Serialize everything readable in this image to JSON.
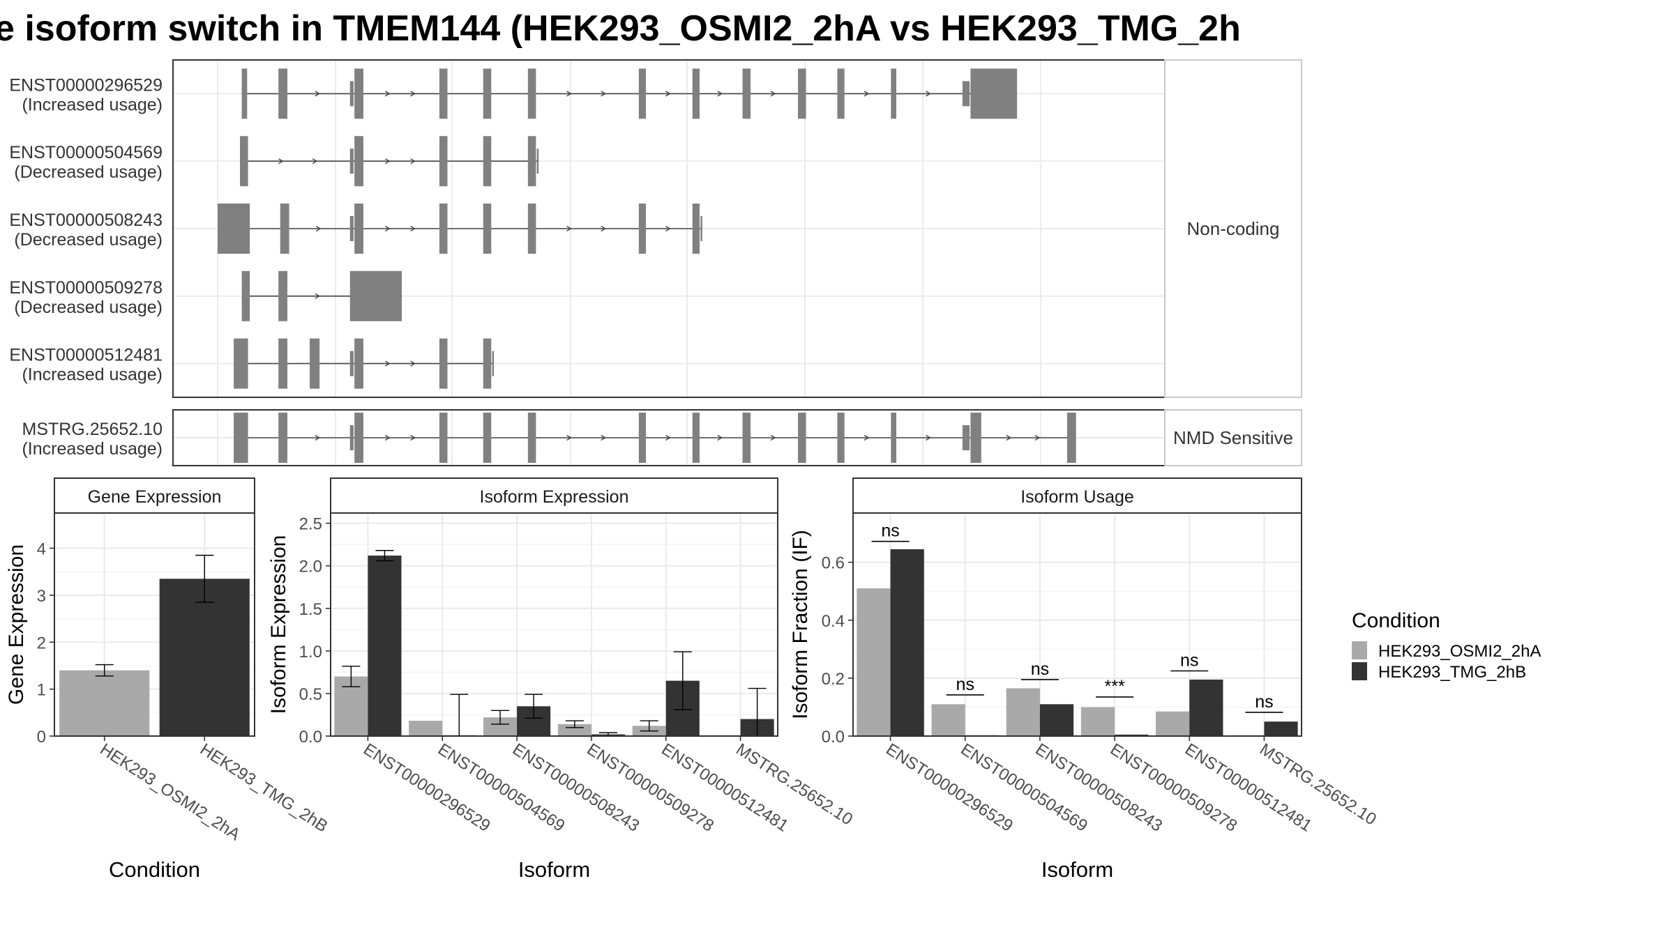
{
  "title": "e isoform switch in TMEM144 (HEK293_OSMI2_2hA vs HEK293_TMG_2h",
  "colors": {
    "exon": "#808080",
    "intron": "#444444",
    "osmi": "#a9a9a9",
    "tmg": "#333333",
    "grid": "#ebebeb",
    "border": "#333333",
    "strip_border": "#c8c8c8"
  },
  "structure": {
    "genomic_range": [
      0,
      1000
    ],
    "groups": [
      {
        "strip": "Non-coding",
        "transcripts": [
          {
            "id": "ENST00000296529",
            "usage": "(Increased usage)",
            "exons": [
              [
                27,
                33
              ],
              [
                68,
                78
              ],
              [
                148,
                152,
                "s"
              ],
              [
                153,
                163
              ],
              [
                248,
                257
              ],
              [
                297,
                306
              ],
              [
                347,
                356
              ],
              [
                471,
                479
              ],
              [
                531,
                539
              ],
              [
                587,
                596
              ],
              [
                649,
                658
              ],
              [
                693,
                701
              ],
              [
                753,
                759
              ],
              [
                833,
                841,
                "s"
              ],
              [
                842,
                894
              ]
            ]
          },
          {
            "id": "ENST00000504569",
            "usage": "(Decreased usage)",
            "exons": [
              [
                25,
                34
              ],
              [
                148,
                152,
                "s"
              ],
              [
                153,
                163
              ],
              [
                248,
                257
              ],
              [
                297,
                306
              ],
              [
                347,
                356
              ],
              [
                357,
                359,
                "s"
              ]
            ]
          },
          {
            "id": "ENST00000508243",
            "usage": "(Decreased usage)",
            "exons": [
              [
                0,
                36
              ],
              [
                70,
                80
              ],
              [
                148,
                152,
                "s"
              ],
              [
                153,
                163
              ],
              [
                248,
                257
              ],
              [
                297,
                306
              ],
              [
                347,
                356
              ],
              [
                471,
                479
              ],
              [
                531,
                539
              ],
              [
                540,
                542,
                "s"
              ]
            ]
          },
          {
            "id": "ENST00000509278",
            "usage": "(Decreased usage)",
            "exons": [
              [
                27,
                36
              ],
              [
                68,
                78
              ],
              [
                148,
                206
              ]
            ]
          },
          {
            "id": "ENST00000512481",
            "usage": "(Increased usage)",
            "exons": [
              [
                18,
                34
              ],
              [
                68,
                78
              ],
              [
                103,
                114
              ],
              [
                148,
                152,
                "s"
              ],
              [
                153,
                163
              ],
              [
                248,
                257
              ],
              [
                297,
                306
              ],
              [
                307,
                309,
                "s"
              ]
            ]
          }
        ]
      },
      {
        "strip": "NMD Sensitive",
        "transcripts": [
          {
            "id": "MSTRG.25652.10",
            "usage": "(Increased usage)",
            "exons": [
              [
                18,
                34
              ],
              [
                68,
                78
              ],
              [
                148,
                152,
                "s"
              ],
              [
                153,
                163
              ],
              [
                248,
                257
              ],
              [
                297,
                306
              ],
              [
                347,
                356
              ],
              [
                471,
                479
              ],
              [
                531,
                539
              ],
              [
                587,
                596
              ],
              [
                649,
                658
              ],
              [
                693,
                701
              ],
              [
                753,
                759
              ],
              [
                833,
                841,
                "s"
              ],
              [
                842,
                854
              ],
              [
                950,
                960
              ]
            ]
          }
        ]
      }
    ]
  },
  "chart_data": [
    {
      "type": "bar",
      "title": "Gene Expression",
      "xlabel": "Condition",
      "ylabel": "Gene Expression",
      "ylim": [
        0,
        4.75
      ],
      "yticks": [
        "0",
        "1",
        "2",
        "3",
        "4"
      ],
      "categories": [
        "HEK293_OSMI2_2hA",
        "HEK293_TMG_2hB"
      ],
      "bars": [
        {
          "cat": 0,
          "series": "HEK293_OSMI2_2hA",
          "value": 1.4,
          "err": [
            1.28,
            1.52
          ]
        },
        {
          "cat": 1,
          "series": "HEK293_TMG_2hB",
          "value": 3.35,
          "err": [
            2.85,
            3.85
          ]
        }
      ]
    },
    {
      "type": "bar",
      "title": "Isoform Expression",
      "xlabel": "Isoform",
      "ylabel": "Isoform Expression",
      "ylim": [
        0,
        2.62
      ],
      "yticks": [
        "0.0",
        "0.5",
        "1.0",
        "1.5",
        "2.0",
        "2.5"
      ],
      "categories": [
        "ENST00000296529",
        "ENST00000504569",
        "ENST00000508243",
        "ENST00000509278",
        "ENST00000512481",
        "MSTRG.25652.10"
      ],
      "series": [
        {
          "name": "HEK293_OSMI2_2hA",
          "values": [
            0.7,
            0.18,
            0.22,
            0.14,
            0.12,
            0.0
          ],
          "err": [
            [
              0.58,
              0.82
            ],
            null,
            [
              0.14,
              0.3
            ],
            [
              0.1,
              0.18
            ],
            [
              0.06,
              0.18
            ],
            null
          ]
        },
        {
          "name": "HEK293_TMG_2hB",
          "values": [
            2.12,
            0.0,
            0.35,
            0.02,
            0.65,
            0.2
          ],
          "err": [
            [
              2.06,
              2.18
            ],
            [
              0.0,
              0.49
            ],
            [
              0.21,
              0.49
            ],
            [
              0.0,
              0.04
            ],
            [
              0.31,
              0.99
            ],
            [
              0.0,
              0.56
            ]
          ]
        }
      ]
    },
    {
      "type": "bar",
      "title": "Isoform Usage",
      "xlabel": "Isoform",
      "ylabel": "Isoform Fraction (IF)",
      "ylim": [
        0,
        0.77
      ],
      "yticks": [
        "0.0",
        "0.2",
        "0.4",
        "0.6"
      ],
      "categories": [
        "ENST00000296529",
        "ENST00000504569",
        "ENST00000508243",
        "ENST00000509278",
        "ENST00000512481",
        "MSTRG.25652.10"
      ],
      "series": [
        {
          "name": "HEK293_OSMI2_2hA",
          "values": [
            0.51,
            0.11,
            0.165,
            0.1,
            0.085,
            0.0
          ]
        },
        {
          "name": "HEK293_TMG_2hB",
          "values": [
            0.645,
            0.0,
            0.11,
            0.005,
            0.195,
            0.05
          ]
        }
      ],
      "significance": [
        {
          "cat": 0,
          "label": "ns",
          "y": 0.672
        },
        {
          "cat": 1,
          "label": "ns",
          "y": 0.142
        },
        {
          "cat": 2,
          "label": "ns",
          "y": 0.195
        },
        {
          "cat": 3,
          "label": "***",
          "y": 0.135
        },
        {
          "cat": 4,
          "label": "ns",
          "y": 0.225
        },
        {
          "cat": 5,
          "label": "ns",
          "y": 0.082
        }
      ]
    }
  ],
  "legend": {
    "title": "Condition",
    "items": [
      {
        "label": "HEK293_OSMI2_2hA",
        "color": "#a9a9a9"
      },
      {
        "label": "HEK293_TMG_2hB",
        "color": "#333333"
      }
    ]
  }
}
